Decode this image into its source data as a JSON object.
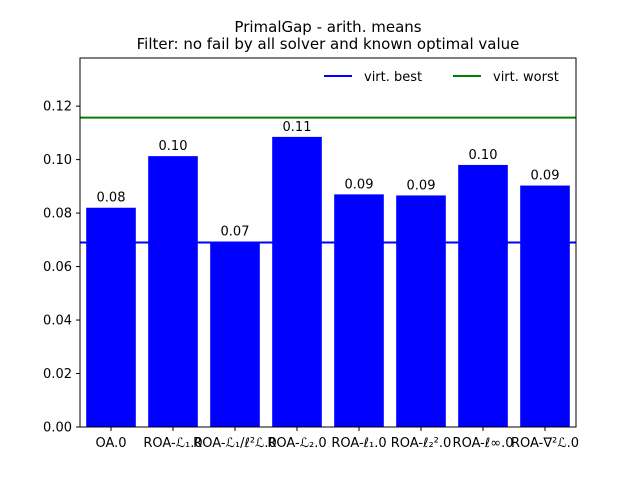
{
  "chart_data": {
    "type": "bar",
    "title": "PrimalGap - arith. means",
    "subtitle": "Filter: no fail by all solver and known optimal value",
    "categories": [
      "OA.0",
      "ROA-ℒ₁.0",
      "ROA-ℒ₁/ℓ²ℒ.0",
      "ROA-ℒ₂.0",
      "ROA-ℓ₁.0",
      "ROA-ℓ₂².0",
      "ROA-ℓ∞.0",
      "ROA-∇²ℒ.0"
    ],
    "values": [
      0.082,
      0.1013,
      0.0693,
      0.1085,
      0.087,
      0.0866,
      0.098,
      0.0903
    ],
    "value_labels": [
      "0.08",
      "0.10",
      "0.07",
      "0.11",
      "0.09",
      "0.09",
      "0.10",
      "0.09"
    ],
    "xlabel": "",
    "ylabel": "",
    "ylim": [
      0,
      0.138
    ],
    "yticks": [
      0.0,
      0.02,
      0.04,
      0.06,
      0.08,
      0.1,
      0.12
    ],
    "ytick_labels": [
      "0.00",
      "0.02",
      "0.04",
      "0.06",
      "0.08",
      "0.10",
      "0.12"
    ],
    "bar_color": "#0000ff",
    "reference_lines": [
      {
        "name": "virt. best",
        "value": 0.069,
        "color": "#0000ff"
      },
      {
        "name": "virt. worst",
        "value": 0.1157,
        "color": "#008000"
      }
    ],
    "legend_position": "top-right",
    "grid": false
  }
}
